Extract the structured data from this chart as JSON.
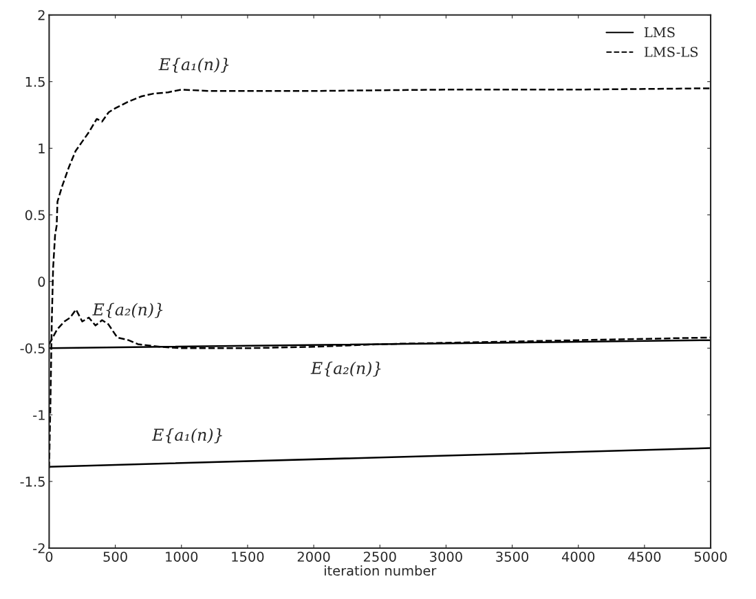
{
  "chart_data": {
    "type": "line",
    "xlabel": "iteration number",
    "xlim": [
      0,
      5000
    ],
    "xticks": [
      0,
      500,
      1000,
      1500,
      2000,
      2500,
      3000,
      3500,
      4000,
      4500,
      5000
    ],
    "ylim": [
      -2,
      2
    ],
    "yticks": [
      -2,
      -1.5,
      -1,
      -0.5,
      0,
      0.5,
      1,
      1.5,
      2
    ],
    "grid": false,
    "legend": "top right",
    "marker": "none",
    "series": [
      {
        "name": "LMS",
        "color": "#000000",
        "line_style": "solid",
        "x": [
          0,
          5000
        ],
        "values": [
          -1.39,
          -1.25
        ]
      },
      {
        "color": "#000000",
        "line_style": "solid",
        "x": [
          0,
          5000
        ],
        "values": [
          -0.5,
          -0.44
        ]
      },
      {
        "name": "LMS-LS",
        "color": "#000000",
        "line_style": "dashed",
        "x": [
          0,
          10,
          20,
          30,
          45,
          57,
          63,
          100,
          150,
          200,
          250,
          300,
          360,
          400,
          450,
          500,
          600,
          700,
          790,
          900,
          1000,
          1200,
          2000,
          3000,
          4000,
          5000
        ],
        "values": [
          -1.4,
          -0.9,
          -0.3,
          0.1,
          0.35,
          0.42,
          0.6,
          0.72,
          0.86,
          0.98,
          1.05,
          1.12,
          1.22,
          1.2,
          1.27,
          1.3,
          1.35,
          1.39,
          1.41,
          1.42,
          1.44,
          1.43,
          1.43,
          1.44,
          1.44,
          1.45
        ]
      },
      {
        "color": "#000000",
        "line_style": "dashed",
        "x": [
          0,
          60,
          115,
          160,
          203,
          250,
          300,
          350,
          400,
          447,
          515,
          600,
          671,
          843,
          1000,
          1500,
          2000,
          2500,
          3000,
          4000,
          5000
        ],
        "values": [
          -0.47,
          -0.36,
          -0.3,
          -0.27,
          -0.21,
          -0.3,
          -0.27,
          -0.33,
          -0.29,
          -0.32,
          -0.42,
          -0.44,
          -0.47,
          -0.49,
          -0.5,
          -0.5,
          -0.49,
          -0.47,
          -0.46,
          -0.44,
          -0.42
        ]
      }
    ],
    "annotations": [
      "E{a₁(n)}",
      "E{a₂(n)}",
      "E{a₂(n)}",
      "E{a₁(n)}"
    ]
  }
}
